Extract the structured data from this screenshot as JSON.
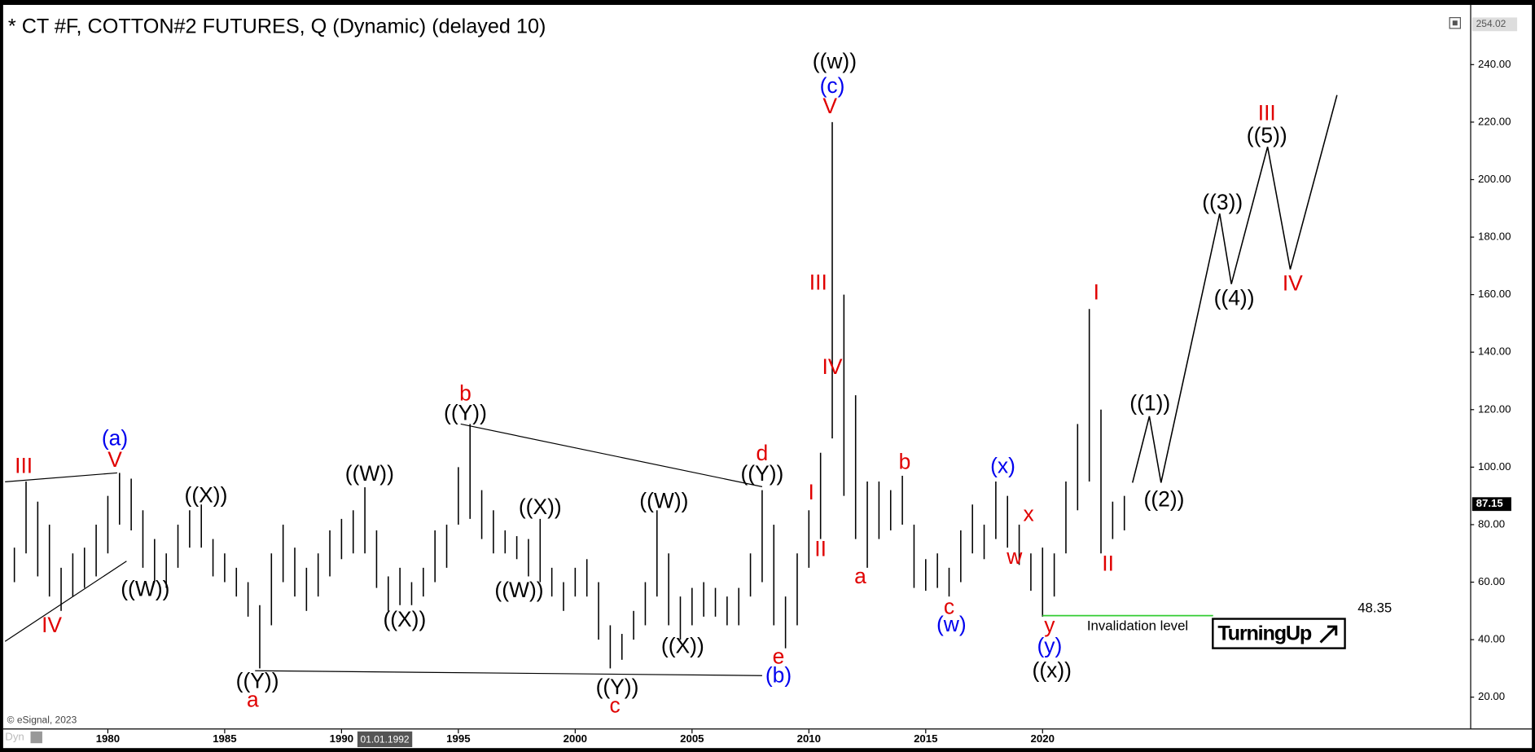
{
  "chart_data": {
    "type": "ohlc",
    "title": "* CT #F, COTTON#2 FUTURES, Q (Dynamic) (delayed 10)",
    "color": "#000000",
    "x": [
      1976.0,
      1976.5,
      1977.0,
      1977.5,
      1978.0,
      1978.5,
      1979.0,
      1979.5,
      1980.0,
      1980.5,
      1981.0,
      1981.5,
      1982.0,
      1982.5,
      1983.0,
      1983.5,
      1984.0,
      1984.5,
      1985.0,
      1985.5,
      1986.0,
      1986.5,
      1987.0,
      1987.5,
      1988.0,
      1988.5,
      1989.0,
      1989.5,
      1990.0,
      1990.5,
      1991.0,
      1991.5,
      1992.0,
      1992.5,
      1993.0,
      1993.5,
      1994.0,
      1994.5,
      1995.0,
      1995.5,
      1996.0,
      1996.5,
      1997.0,
      1997.5,
      1998.0,
      1998.5,
      1999.0,
      1999.5,
      2000.0,
      2000.5,
      2001.0,
      2001.5,
      2002.0,
      2002.5,
      2003.0,
      2003.5,
      2004.0,
      2004.5,
      2005.0,
      2005.5,
      2006.0,
      2006.5,
      2007.0,
      2007.5,
      2008.0,
      2008.5,
      2009.0,
      2009.5,
      2010.0,
      2010.5,
      2011.0,
      2011.5,
      2012.0,
      2012.5,
      2013.0,
      2013.5,
      2014.0,
      2014.5,
      2015.0,
      2015.5,
      2016.0,
      2016.5,
      2017.0,
      2017.5,
      2018.0,
      2018.5,
      2019.0,
      2019.5,
      2020.0,
      2020.5,
      2021.0,
      2021.5,
      2022.0,
      2022.5,
      2023.0,
      2023.5
    ],
    "high": [
      72,
      95,
      88,
      80,
      65,
      70,
      72,
      80,
      90,
      98,
      96,
      85,
      75,
      70,
      80,
      85,
      87,
      75,
      70,
      65,
      60,
      52,
      70,
      80,
      72,
      65,
      70,
      78,
      82,
      85,
      93,
      78,
      62,
      65,
      60,
      65,
      78,
      80,
      100,
      115,
      92,
      85,
      78,
      76,
      75,
      82,
      65,
      60,
      65,
      68,
      60,
      45,
      42,
      50,
      60,
      85,
      70,
      55,
      58,
      60,
      58,
      55,
      58,
      70,
      92,
      80,
      55,
      70,
      85,
      105,
      220,
      160,
      125,
      95,
      95,
      92,
      97,
      80,
      68,
      70,
      65,
      78,
      87,
      80,
      95,
      90,
      80,
      70,
      72,
      70,
      95,
      115,
      155,
      120,
      88,
      90
    ],
    "low": [
      60,
      70,
      62,
      55,
      50,
      55,
      58,
      62,
      70,
      80,
      78,
      65,
      60,
      58,
      65,
      72,
      72,
      62,
      60,
      55,
      48,
      30,
      45,
      60,
      55,
      50,
      55,
      62,
      68,
      70,
      70,
      58,
      50,
      52,
      52,
      55,
      60,
      65,
      80,
      82,
      75,
      70,
      70,
      68,
      62,
      60,
      55,
      50,
      55,
      55,
      40,
      30,
      33,
      40,
      45,
      55,
      45,
      40,
      45,
      48,
      48,
      45,
      45,
      55,
      60,
      45,
      37,
      45,
      65,
      75,
      110,
      90,
      75,
      65,
      75,
      78,
      80,
      58,
      57,
      58,
      55,
      60,
      70,
      68,
      75,
      72,
      66,
      57,
      48,
      55,
      70,
      85,
      95,
      70,
      75,
      78
    ],
    "xlim": [
      1975.52,
      2038.3
    ],
    "ylim": [
      9.44,
      259.75
    ],
    "xticks": [
      1980,
      1985,
      1990,
      1995,
      2000,
      2005,
      2010,
      2015,
      2020
    ],
    "yticks": [
      {
        "value": 20,
        "label": "20.00"
      },
      {
        "value": 40,
        "label": "40.00"
      },
      {
        "value": 60,
        "label": "60.00"
      },
      {
        "value": 80,
        "label": "80.00"
      },
      {
        "value": 100,
        "label": "100.00"
      },
      {
        "value": 120,
        "label": "120.00"
      },
      {
        "value": 140,
        "label": "140.00"
      },
      {
        "value": 160,
        "label": "160.00"
      },
      {
        "value": 180,
        "label": "180.00"
      },
      {
        "value": 200,
        "label": "200.00"
      },
      {
        "value": 220,
        "label": "220.00"
      },
      {
        "value": 240,
        "label": "240.00"
      }
    ],
    "top_price": 254.02,
    "last_price": 87.15,
    "cursor_label": "01.01.1992",
    "source": "© eSignal, 2023",
    "corner_label": "Dyn",
    "logo": "TurningUp",
    "projection": {
      "x": [
        2023.85,
        2024.57,
        2025.07,
        2027.58,
        2028.08,
        2029.63,
        2030.6,
        2032.6
      ],
      "y": [
        94.6,
        117.7,
        94.6,
        188.2,
        163.7,
        211.4,
        168.8,
        229.4
      ]
    },
    "trendlines": [
      {
        "x": [
          1975.6,
          1980.4
        ],
        "y": [
          94.9,
          98
        ]
      },
      {
        "x": [
          1975.6,
          1980.8
        ],
        "y": [
          39.4,
          67.3
        ]
      },
      {
        "x": [
          1986.3,
          2008.0
        ],
        "y": [
          29.2,
          27.5
        ]
      },
      {
        "x": [
          1995.1,
          2008.0
        ],
        "y": [
          115,
          93.2
        ]
      }
    ],
    "invalidation": {
      "value": 48.35,
      "x": [
        2020.0,
        2027.3
      ],
      "color": "#33cc33",
      "label": "Invalidation level"
    },
    "annotations": [
      {
        "text": "III",
        "x": 1976.4,
        "y": 100.0,
        "color": "#e00000"
      },
      {
        "text": "(a)",
        "x": 1980.3,
        "y": 109.6,
        "color": "#0000ee"
      },
      {
        "text": "V",
        "x": 1980.3,
        "y": 102.1,
        "color": "#e00000"
      },
      {
        "text": "IV",
        "x": 1977.6,
        "y": 44.5,
        "color": "#e00000"
      },
      {
        "text": "((W))",
        "x": 1981.6,
        "y": 57.1,
        "color": "#000000"
      },
      {
        "text": "((X))",
        "x": 1984.2,
        "y": 89.8,
        "color": "#000000"
      },
      {
        "text": "((Y))",
        "x": 1986.4,
        "y": 25.1,
        "color": "#000000"
      },
      {
        "text": "a",
        "x": 1986.2,
        "y": 18.6,
        "color": "#e00000"
      },
      {
        "text": "((W))",
        "x": 1991.2,
        "y": 97.3,
        "color": "#000000"
      },
      {
        "text": "((X))",
        "x": 1992.7,
        "y": 46.5,
        "color": "#000000"
      },
      {
        "text": "b",
        "x": 1995.3,
        "y": 125.2,
        "color": "#e00000"
      },
      {
        "text": "((Y))",
        "x": 1995.3,
        "y": 118.4,
        "color": "#000000"
      },
      {
        "text": "((X))",
        "x": 1998.5,
        "y": 85.7,
        "color": "#000000"
      },
      {
        "text": "((W))",
        "x": 1997.6,
        "y": 56.8,
        "color": "#000000"
      },
      {
        "text": "((W))",
        "x": 2003.8,
        "y": 87.7,
        "color": "#000000"
      },
      {
        "text": "((X))",
        "x": 2004.6,
        "y": 37.3,
        "color": "#000000"
      },
      {
        "text": "((Y))",
        "x": 2001.8,
        "y": 23.0,
        "color": "#000000"
      },
      {
        "text": "c",
        "x": 2001.7,
        "y": 16.6,
        "color": "#e00000"
      },
      {
        "text": "d",
        "x": 2008.0,
        "y": 104.4,
        "color": "#e00000"
      },
      {
        "text": "((Y))",
        "x": 2008.0,
        "y": 97.3,
        "color": "#000000"
      },
      {
        "text": "(b)",
        "x": 2008.7,
        "y": 27.1,
        "color": "#0000ee"
      },
      {
        "text": "e",
        "x": 2008.7,
        "y": 33.6,
        "color": "#e00000"
      },
      {
        "text": "I",
        "x": 2010.1,
        "y": 90.8,
        "color": "#e00000"
      },
      {
        "text": "II",
        "x": 2010.5,
        "y": 71.1,
        "color": "#e00000"
      },
      {
        "text": "III",
        "x": 2010.4,
        "y": 163.7,
        "color": "#e00000"
      },
      {
        "text": "IV",
        "x": 2011.0,
        "y": 134.4,
        "color": "#e00000"
      },
      {
        "text": "V",
        "x": 2010.9,
        "y": 225.0,
        "color": "#e00000"
      },
      {
        "text": "(c)",
        "x": 2011.0,
        "y": 232.2,
        "color": "#0000ee"
      },
      {
        "text": "((w))",
        "x": 2011.1,
        "y": 240.7,
        "color": "#000000"
      },
      {
        "text": "a",
        "x": 2012.2,
        "y": 61.5,
        "color": "#e00000"
      },
      {
        "text": "b",
        "x": 2014.1,
        "y": 101.4,
        "color": "#e00000"
      },
      {
        "text": "c",
        "x": 2016.0,
        "y": 50.9,
        "color": "#e00000"
      },
      {
        "text": "(w)",
        "x": 2016.1,
        "y": 44.8,
        "color": "#0000ee"
      },
      {
        "text": "(x)",
        "x": 2018.3,
        "y": 100.0,
        "color": "#0000ee"
      },
      {
        "text": "x",
        "x": 2019.4,
        "y": 83.3,
        "color": "#e00000"
      },
      {
        "text": "w",
        "x": 2018.8,
        "y": 68.3,
        "color": "#e00000"
      },
      {
        "text": "y",
        "x": 2020.3,
        "y": 44.5,
        "color": "#e00000"
      },
      {
        "text": "(y)",
        "x": 2020.3,
        "y": 37.3,
        "color": "#0000ee"
      },
      {
        "text": "((x))",
        "x": 2020.4,
        "y": 28.8,
        "color": "#000000"
      },
      {
        "text": "I",
        "x": 2022.3,
        "y": 160.3,
        "color": "#e00000"
      },
      {
        "text": "II",
        "x": 2022.8,
        "y": 66.0,
        "color": "#e00000"
      },
      {
        "text": "((1))",
        "x": 2024.6,
        "y": 121.8,
        "color": "#000000"
      },
      {
        "text": "((2))",
        "x": 2025.2,
        "y": 88.4,
        "color": "#000000"
      },
      {
        "text": "((3))",
        "x": 2027.7,
        "y": 191.6,
        "color": "#000000"
      },
      {
        "text": "((4))",
        "x": 2028.2,
        "y": 158.3,
        "color": "#000000"
      },
      {
        "text": "III",
        "x": 2029.6,
        "y": 222.6,
        "color": "#e00000"
      },
      {
        "text": "((5))",
        "x": 2029.6,
        "y": 214.8,
        "color": "#000000"
      },
      {
        "text": "IV",
        "x": 2030.7,
        "y": 163.4,
        "color": "#e00000"
      }
    ]
  }
}
